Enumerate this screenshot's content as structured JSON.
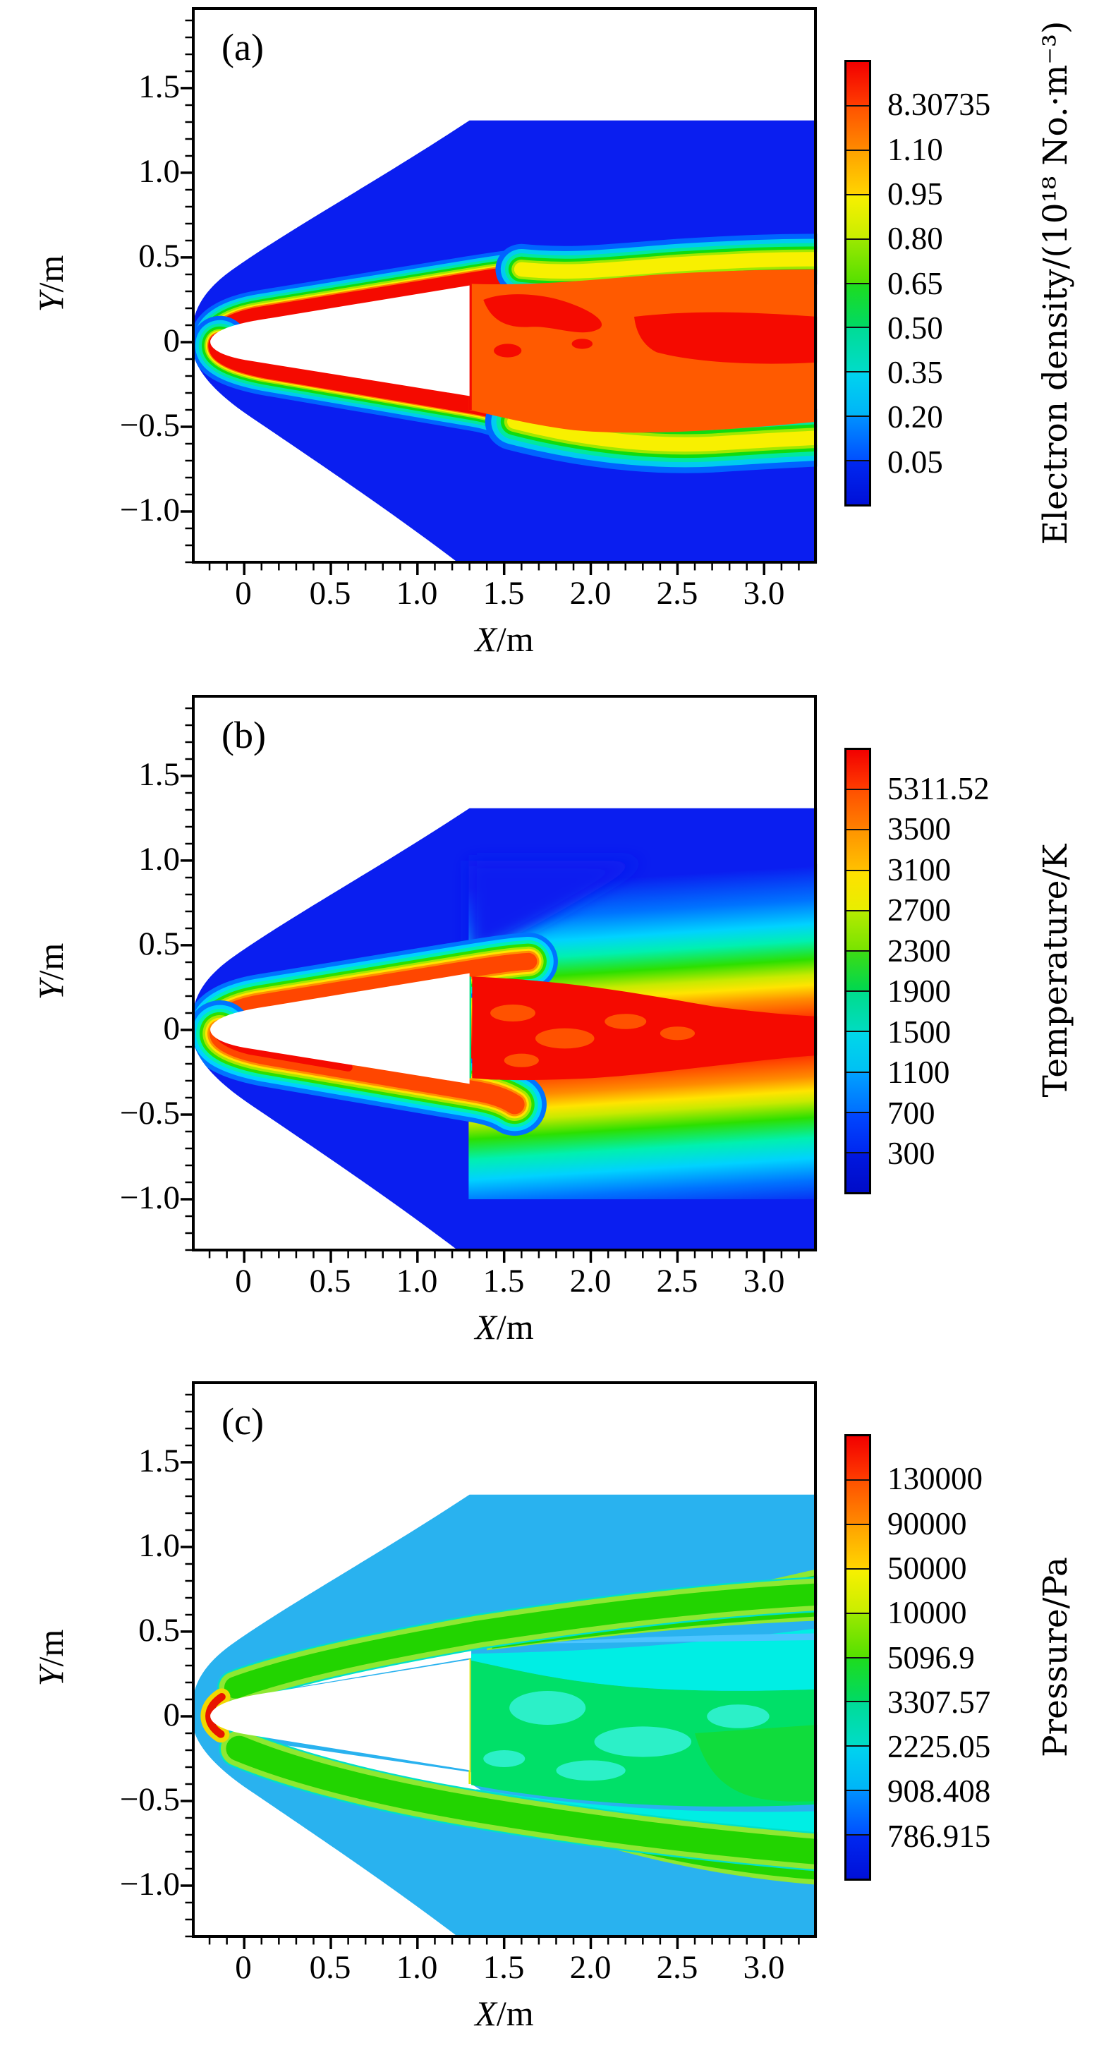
{
  "figure": {
    "description": "Flow-field contour maps around a blunt-cone reentry capsule at three quantities"
  },
  "panels": [
    {
      "label": "(a)",
      "xlabel_var": "X",
      "xlabel_unit": "/m",
      "ylabel_var": "Y",
      "ylabel_unit": "/m",
      "x_ticks": [
        "0",
        "0.5",
        "1.0",
        "1.5",
        "2.0",
        "2.5",
        "3.0"
      ],
      "y_ticks": [
        "1.5",
        "1.0",
        "0.5",
        "0",
        "−0.5",
        "−1.0"
      ],
      "colorbar": {
        "title": "Electron density/(10¹⁸ No.·m⁻³)",
        "labels": [
          "8.30735",
          "1.10",
          "0.95",
          "0.80",
          "0.65",
          "0.50",
          "0.35",
          "0.20",
          "0.05"
        ],
        "bands": [
          [
            "#f20000",
            "#ff3c00"
          ],
          [
            "#ff5200",
            "#ff8a00"
          ],
          [
            "#ffa200",
            "#ffd400"
          ],
          [
            "#f8f000",
            "#c8ee00"
          ],
          [
            "#9ae800",
            "#55e000"
          ],
          [
            "#1edc1e",
            "#00da64"
          ],
          [
            "#00dc96",
            "#00dcc8"
          ],
          [
            "#00d4ee",
            "#00b4f8"
          ],
          [
            "#0090ff",
            "#0050ff"
          ],
          [
            "#0028f0",
            "#0010d8"
          ]
        ]
      }
    },
    {
      "label": "(b)",
      "xlabel_var": "X",
      "xlabel_unit": "/m",
      "ylabel_var": "Y",
      "ylabel_unit": "/m",
      "x_ticks": [
        "0",
        "0.5",
        "1.0",
        "1.5",
        "2.0",
        "2.5",
        "3.0"
      ],
      "y_ticks": [
        "1.5",
        "1.0",
        "0.5",
        "0",
        "−0.5",
        "−1.0"
      ],
      "colorbar": {
        "title": "Temperature/K",
        "labels": [
          "5311.52",
          "3500",
          "3100",
          "2700",
          "2300",
          "1900",
          "1500",
          "1100",
          "700",
          "300"
        ],
        "bands": [
          [
            "#f20000",
            "#ff3c00"
          ],
          [
            "#ff5000",
            "#ff8000"
          ],
          [
            "#ff9400",
            "#ffc000"
          ],
          [
            "#ffe000",
            "#e8ee00"
          ],
          [
            "#b4ea00",
            "#78e400"
          ],
          [
            "#3cdc14",
            "#00d850"
          ],
          [
            "#00dc8c",
            "#00dcc0"
          ],
          [
            "#00d8e8",
            "#00c0f4"
          ],
          [
            "#00a0ff",
            "#0070ff"
          ],
          [
            "#0048ff",
            "#0028f0"
          ],
          [
            "#0018e0",
            "#000cc8"
          ]
        ]
      }
    },
    {
      "label": "(c)",
      "xlabel_var": "X",
      "xlabel_unit": "/m",
      "ylabel_var": "Y",
      "ylabel_unit": "/m",
      "x_ticks": [
        "0",
        "0.5",
        "1.0",
        "1.5",
        "2.0",
        "2.5",
        "3.0"
      ],
      "y_ticks": [
        "1.5",
        "1.0",
        "0.5",
        "0",
        "−0.5",
        "−1.0"
      ],
      "colorbar": {
        "title": "Pressure/Pa",
        "labels": [
          "130000",
          "90000",
          "50000",
          "10000",
          "5096.9",
          "3307.57",
          "2225.05",
          "908.408",
          "786.915"
        ],
        "bands": [
          [
            "#f20000",
            "#ff3c00"
          ],
          [
            "#ff5200",
            "#ff8a00"
          ],
          [
            "#ffa200",
            "#ffd400"
          ],
          [
            "#f8f000",
            "#c8ee00"
          ],
          [
            "#9ae800",
            "#55e000"
          ],
          [
            "#1edc1e",
            "#00da64"
          ],
          [
            "#00dc96",
            "#00dcc8"
          ],
          [
            "#00d4ee",
            "#00b4f8"
          ],
          [
            "#0090ff",
            "#0050ff"
          ],
          [
            "#0028f0",
            "#0010d8"
          ]
        ]
      }
    }
  ],
  "chart_data": [
    {
      "type": "heatmap",
      "title": "(a)",
      "xlabel": "X/m",
      "ylabel": "Y/m",
      "xlim": [
        -0.3,
        3.3
      ],
      "ylim": [
        -1.31,
        1.98
      ],
      "colorbar_label": "Electron density/(10¹⁸ No.·m⁻³)",
      "levels": [
        0.05,
        0.2,
        0.35,
        0.5,
        0.65,
        0.8,
        0.95,
        1.1,
        8.30735
      ],
      "colormap": "rainbow blue-to-red, discrete filled contours",
      "features": [
        "bow-shock wedge filled dark blue (lowest band)",
        "thin red plasma sheath hugging the blunt-cone surface from the nose to the base at x=1.3",
        "orange recirculating wake behind the base with irregular red patches and a red core jet extending to the right boundary near y=0",
        "rainbow shear-layer fringes (yellow-green-cyan) bounding the wake",
        "white blanked body: blunt-nosed cone, nose at x=-0.2, base at x=1.3, half-height 0.33"
      ]
    },
    {
      "type": "heatmap",
      "title": "(b)",
      "xlabel": "X/m",
      "ylabel": "Y/m",
      "xlim": [
        -0.3,
        3.3
      ],
      "ylim": [
        -1.31,
        1.98
      ],
      "colorbar_label": "Temperature/K",
      "levels": [
        300,
        700,
        1100,
        1500,
        1900,
        2300,
        2700,
        3100,
        3500,
        5311.52
      ],
      "colormap": "rainbow blue-to-red, discrete filled contours",
      "features": [
        "freestream wedge dark blue (300 K)",
        "smooth blue-cyan-green-yellow gradient across the shock layer thickening toward the wake",
        "orange high-temperature boundary layer on the cone with red near the stagnation nose",
        "red turbulent wake block behind the base (x>1.3) with red core reaching the right boundary"
      ]
    },
    {
      "type": "heatmap",
      "title": "(c)",
      "xlabel": "X/m",
      "ylabel": "Y/m",
      "xlim": [
        -0.3,
        3.3
      ],
      "ylim": [
        -1.31,
        1.98
      ],
      "colorbar_label": "Pressure/Pa",
      "levels": [
        786.915,
        908.408,
        2225.05,
        3307.57,
        5096.9,
        10000,
        50000,
        90000,
        130000
      ],
      "colormap": "rainbow blue-to-red, discrete filled contours",
      "features": [
        "sky-blue freestream wedge",
        "green band (~10000 Pa) just inside the oblique shock on both sides",
        "red/yellow stagnation spot wrapping the nose only",
        "low-pressure region next to the cone surface blanked white (below lowest level)",
        "green wake block behind the base with cyan patches and cyan/green layered bands downstream"
      ]
    }
  ]
}
